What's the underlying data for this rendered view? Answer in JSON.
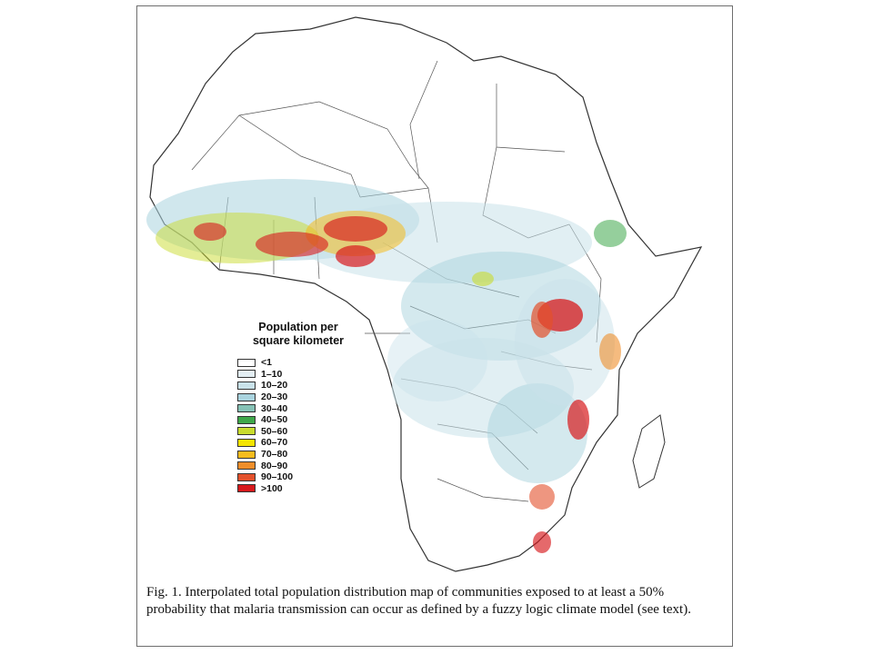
{
  "legend": {
    "title_line1": "Population per",
    "title_line2": "square kilometer",
    "items": [
      {
        "label": "<1",
        "color": "#ffffff"
      },
      {
        "label": "1–10",
        "color": "#e3eef3"
      },
      {
        "label": "10–20",
        "color": "#c9e2ea"
      },
      {
        "label": "20–30",
        "color": "#a9d3de"
      },
      {
        "label": "30–40",
        "color": "#86c2b6"
      },
      {
        "label": "40–50",
        "color": "#3ea84a"
      },
      {
        "label": "50–60",
        "color": "#c9dc2e"
      },
      {
        "label": "60–70",
        "color": "#f4e400"
      },
      {
        "label": "70–80",
        "color": "#f6bc1e"
      },
      {
        "label": "80–90",
        "color": "#ef8e2a"
      },
      {
        "label": "90–100",
        "color": "#e2502b"
      },
      {
        "label": ">100",
        "color": "#d7191c"
      }
    ]
  },
  "caption": "Fig. 1. Interpolated total population distribution map of communities exposed to at least a 50% probability that malaria transmission can occur as defined by a fuzzy logic climate model (see text)."
}
